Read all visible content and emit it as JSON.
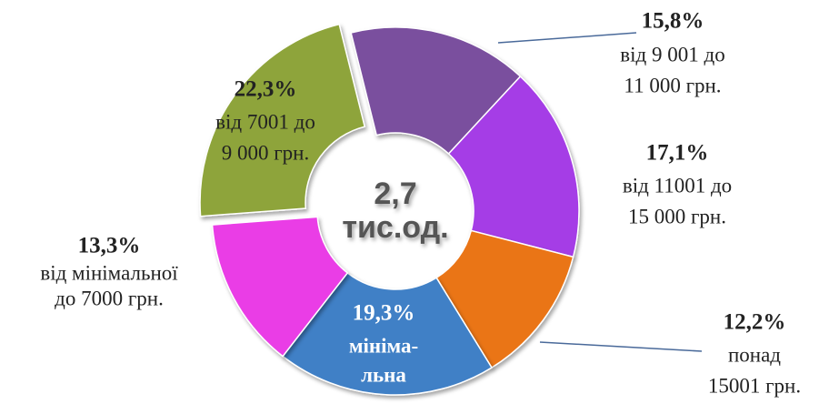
{
  "chart_data": {
    "type": "donut",
    "center_label": [
      "2,7",
      "тис.од."
    ],
    "categories": [
      [
        "від 9 001 до",
        "11 000 грн."
      ],
      [
        "від 11001  до",
        "15 000 грн."
      ],
      [
        "понад",
        "15001 грн."
      ],
      [
        "мініма-",
        "льна"
      ],
      [
        "від мінімальної",
        "до 7000 грн."
      ],
      [
        "від 7001 до",
        "9 000 грн."
      ]
    ],
    "values": [
      15.8,
      17.1,
      12.2,
      19.3,
      13.3,
      22.3
    ],
    "value_labels": [
      "15,8%",
      "17,1%",
      "12,2%",
      "19,3%",
      "13,3%",
      "22,3%"
    ],
    "colors": [
      "#7a4f9e",
      "#a53ee6",
      "#ea7418",
      "#4080c6",
      "#ea3ee6",
      "#8ea43a"
    ]
  }
}
